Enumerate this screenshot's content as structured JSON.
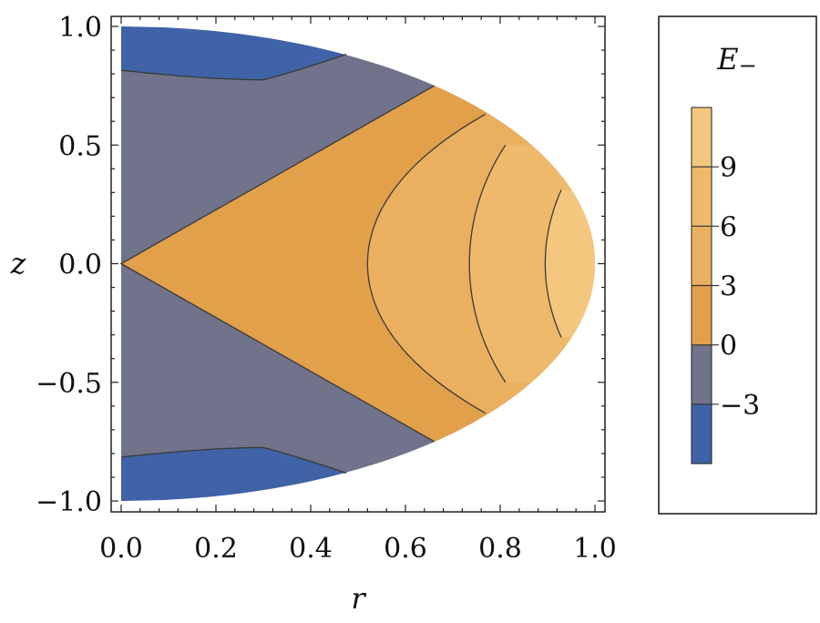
{
  "chart_data": {
    "type": "contour",
    "xlabel": "r",
    "ylabel": "z",
    "xlim": [
      0,
      1
    ],
    "ylim": [
      -1,
      1
    ],
    "x_ticks": [
      "0.0",
      "0.2",
      "0.4",
      "0.6",
      "0.8",
      "1.0"
    ],
    "x_tick_values": [
      0,
      0.2,
      0.4,
      0.6,
      0.8,
      1.0
    ],
    "y_ticks": [
      "1.0",
      "0.5",
      "0.0",
      "−0.5",
      "−1.0"
    ],
    "y_tick_values": [
      1,
      0.5,
      0,
      -0.5,
      -1
    ],
    "grid": false,
    "domain_boundary": "half-ellipse r^2 + z^2 <= 1, r >= 0",
    "contour_levels": [
      -3,
      0,
      3,
      6,
      9
    ],
    "regions": [
      {
        "range": [
          -6,
          -3
        ],
        "color": "#3f63a6"
      },
      {
        "range": [
          -3,
          0
        ],
        "color": "#707389"
      },
      {
        "range": [
          0,
          3
        ],
        "color": "#e3a04a"
      },
      {
        "range": [
          3,
          6
        ],
        "color": "#eab060"
      },
      {
        "range": [
          6,
          9
        ],
        "color": "#eeb96a"
      },
      {
        "range": [
          9,
          12
        ],
        "color": "#f3c77d"
      }
    ],
    "legend": {
      "title": "E−",
      "placement": "right",
      "tick_labels": [
        "9",
        "6",
        "3",
        "0",
        "−3"
      ],
      "tick_values": [
        9,
        6,
        3,
        0,
        -3
      ],
      "range": [
        -6,
        12
      ]
    }
  }
}
